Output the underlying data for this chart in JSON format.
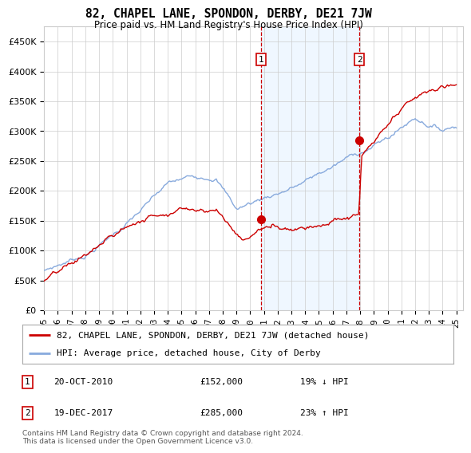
{
  "title": "82, CHAPEL LANE, SPONDON, DERBY, DE21 7JW",
  "subtitle": "Price paid vs. HM Land Registry's House Price Index (HPI)",
  "ylabel_ticks": [
    "£0",
    "£50K",
    "£100K",
    "£150K",
    "£200K",
    "£250K",
    "£300K",
    "£350K",
    "£400K",
    "£450K"
  ],
  "ylim": [
    0,
    475000
  ],
  "xlim_start": 1995.0,
  "xlim_end": 2025.5,
  "x_ticks": [
    1995,
    1996,
    1997,
    1998,
    1999,
    2000,
    2001,
    2002,
    2003,
    2004,
    2005,
    2006,
    2007,
    2008,
    2009,
    2010,
    2011,
    2012,
    2013,
    2014,
    2015,
    2016,
    2017,
    2018,
    2019,
    2020,
    2021,
    2022,
    2023,
    2024,
    2025
  ],
  "hpi_color": "#88aadd",
  "price_color": "#cc0000",
  "vline_color": "#cc0000",
  "shaded_color": "#ddeeff",
  "shaded_alpha": 0.45,
  "marker1_x": 2010.8,
  "marker2_x": 2017.95,
  "marker1_y": 420000,
  "marker2_y": 420000,
  "marker1_label": "1",
  "marker2_label": "2",
  "sale1_x": 2010.8,
  "sale1_price": 152000,
  "sale2_x": 2017.95,
  "sale2_price": 285000,
  "legend_house_label": "82, CHAPEL LANE, SPONDON, DERBY, DE21 7JW (detached house)",
  "legend_hpi_label": "HPI: Average price, detached house, City of Derby",
  "annot1_num": "1",
  "annot1_date": "20-OCT-2010",
  "annot1_price": "£152,000",
  "annot1_hpi": "19% ↓ HPI",
  "annot2_num": "2",
  "annot2_date": "19-DEC-2017",
  "annot2_price": "£285,000",
  "annot2_hpi": "23% ↑ HPI",
  "footer": "Contains HM Land Registry data © Crown copyright and database right 2024.\nThis data is licensed under the Open Government Licence v3.0.",
  "bg_color": "#ffffff",
  "grid_color": "#cccccc"
}
